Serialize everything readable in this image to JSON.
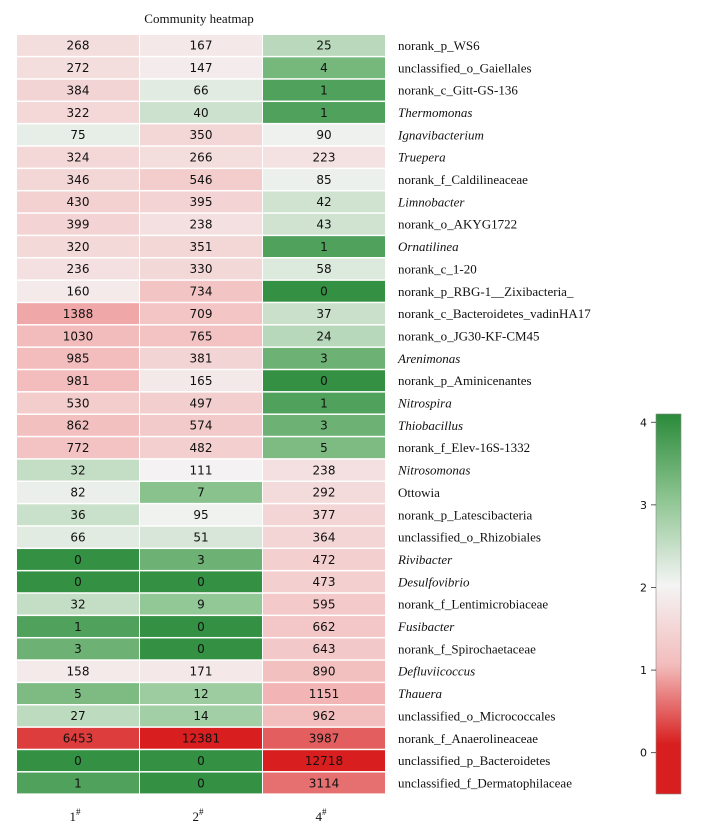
{
  "chart_data": {
    "type": "heatmap",
    "title": "Community heatmap",
    "columns": [
      {
        "base": "1",
        "sup": "#"
      },
      {
        "base": "2",
        "sup": "#"
      },
      {
        "base": "4",
        "sup": "#"
      }
    ],
    "rows": [
      {
        "label": "norank_p_WS6",
        "italic": false,
        "values": [
          268,
          167,
          25
        ]
      },
      {
        "label": "unclassified_o_Gaiellales",
        "italic": false,
        "values": [
          272,
          147,
          4
        ]
      },
      {
        "label": "norank_c_Gitt-GS-136",
        "italic": false,
        "values": [
          384,
          66,
          1
        ]
      },
      {
        "label": "Thermomonas",
        "italic": true,
        "values": [
          322,
          40,
          1
        ]
      },
      {
        "label": "Ignavibacterium",
        "italic": true,
        "values": [
          75,
          350,
          90
        ]
      },
      {
        "label": "Truepera",
        "italic": true,
        "values": [
          324,
          266,
          223
        ]
      },
      {
        "label": "norank_f_Caldilineaceae",
        "italic": false,
        "values": [
          346,
          546,
          85
        ]
      },
      {
        "label": "Limnobacter",
        "italic": true,
        "values": [
          430,
          395,
          42
        ]
      },
      {
        "label": "norank_o_AKYG1722",
        "italic": false,
        "values": [
          399,
          238,
          43
        ]
      },
      {
        "label": "Ornatilinea",
        "italic": true,
        "values": [
          320,
          351,
          1
        ]
      },
      {
        "label": "norank_c_1-20",
        "italic": false,
        "values": [
          236,
          330,
          58
        ]
      },
      {
        "label": "norank_p_RBG-1__Zixibacteria_",
        "italic": false,
        "values": [
          160,
          734,
          0
        ]
      },
      {
        "label": "norank_c_Bacteroidetes_vadinHA17",
        "italic": false,
        "values": [
          1388,
          709,
          37
        ]
      },
      {
        "label": "norank_o_JG30-KF-CM45",
        "italic": false,
        "values": [
          1030,
          765,
          24
        ]
      },
      {
        "label": "Arenimonas",
        "italic": true,
        "values": [
          985,
          381,
          3
        ]
      },
      {
        "label": "norank_p_Aminicenantes",
        "italic": false,
        "values": [
          981,
          165,
          0
        ]
      },
      {
        "label": "Nitrospira",
        "italic": true,
        "values": [
          530,
          497,
          1
        ]
      },
      {
        "label": "Thiobacillus",
        "italic": true,
        "values": [
          862,
          574,
          3
        ]
      },
      {
        "label": "norank_f_Elev-16S-1332",
        "italic": false,
        "values": [
          772,
          482,
          5
        ]
      },
      {
        "label": "Nitrosomonas",
        "italic": true,
        "values": [
          32,
          111,
          238
        ]
      },
      {
        "label": "Ottowia",
        "italic": false,
        "values": [
          82,
          7,
          292
        ]
      },
      {
        "label": "norank_p_Latescibacteria",
        "italic": false,
        "values": [
          36,
          95,
          377
        ]
      },
      {
        "label": "unclassified_o_Rhizobiales",
        "italic": false,
        "values": [
          66,
          51,
          364
        ]
      },
      {
        "label": "Rivibacter",
        "italic": true,
        "values": [
          0,
          3,
          472
        ]
      },
      {
        "label": "Desulfovibrio",
        "italic": true,
        "values": [
          0,
          0,
          473
        ]
      },
      {
        "label": "norank_f_Lentimicrobiaceae",
        "italic": false,
        "values": [
          32,
          9,
          595
        ]
      },
      {
        "label": "Fusibacter",
        "italic": true,
        "values": [
          1,
          0,
          662
        ]
      },
      {
        "label": "norank_f_Spirochaetaceae",
        "italic": false,
        "values": [
          3,
          0,
          643
        ]
      },
      {
        "label": "Defluviicoccus",
        "italic": true,
        "values": [
          158,
          171,
          890
        ]
      },
      {
        "label": "Thauera",
        "italic": true,
        "values": [
          5,
          12,
          1151
        ]
      },
      {
        "label": "unclassified_o_Micrococcales",
        "italic": false,
        "values": [
          27,
          14,
          962
        ]
      },
      {
        "label": "norank_f_Anaerolineaceae",
        "italic": false,
        "values": [
          6453,
          12381,
          3987
        ]
      },
      {
        "label": "unclassified_p_Bacteroidetes",
        "italic": false,
        "values": [
          0,
          0,
          12718
        ]
      },
      {
        "label": "unclassified_f_Dermatophilaceae",
        "italic": false,
        "values": [
          1,
          0,
          3114
        ]
      }
    ],
    "colorbar": {
      "ticks": [
        0,
        1,
        2,
        3,
        4
      ],
      "range": [
        -0.5,
        4.1
      ],
      "colors": {
        "low": "#d81e1e",
        "pink": "#f3bcbc",
        "mid": "#f4f4f4",
        "green_mid": "#8cc490",
        "high": "#2a8a3a"
      }
    }
  }
}
